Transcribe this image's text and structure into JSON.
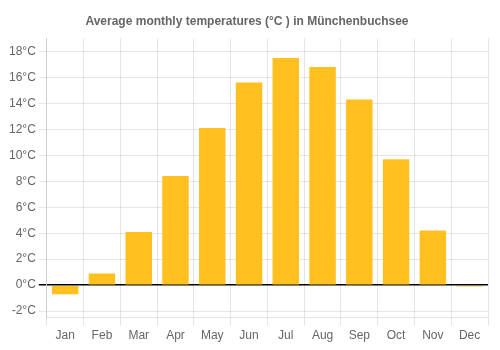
{
  "chart_data": {
    "type": "bar",
    "title": "Average monthly temperatures (°C ) in Münchenbuchsee",
    "categories": [
      "Jan",
      "Feb",
      "Mar",
      "Apr",
      "May",
      "Jun",
      "Jul",
      "Aug",
      "Sep",
      "Oct",
      "Nov",
      "Dec"
    ],
    "values": [
      -0.7,
      0.9,
      4.1,
      8.4,
      12.1,
      15.6,
      17.5,
      16.8,
      14.3,
      9.7,
      4.2,
      -0.1
    ],
    "color": "#FFC020",
    "ylim": [
      -2.5,
      19
    ],
    "yticks": [
      {
        "value": -2,
        "label": "-2°C"
      },
      {
        "value": 0,
        "label": "0°C"
      },
      {
        "value": 2,
        "label": "2°C"
      },
      {
        "value": 4,
        "label": "4°C"
      },
      {
        "value": 6,
        "label": "6°C"
      },
      {
        "value": 8,
        "label": "8°C"
      },
      {
        "value": 10,
        "label": "10°C"
      },
      {
        "value": 12,
        "label": "12°C"
      },
      {
        "value": 14,
        "label": "14°C"
      },
      {
        "value": 16,
        "label": "16°C"
      },
      {
        "value": 18,
        "label": "18°C"
      }
    ],
    "grid": true
  }
}
